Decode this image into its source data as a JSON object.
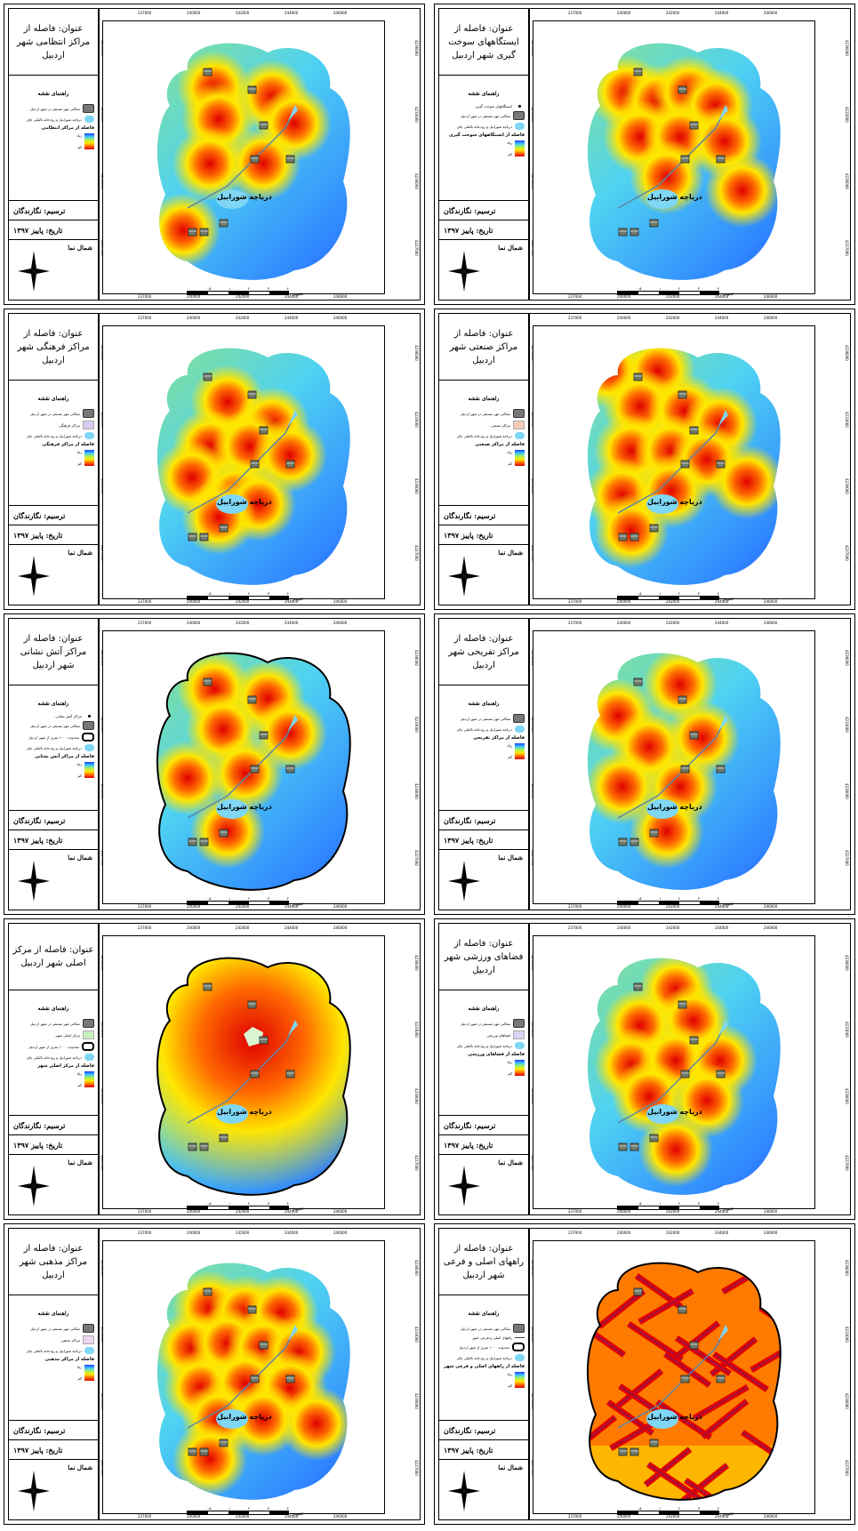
{
  "common": {
    "legend_heading": "راهنمای نقشه",
    "item_buildings": "سکانی مهر مستقر در شهر اردبیل",
    "item_lake": "دریاچه شورابیل و رودخانه بالقلی چای",
    "item_buffer": "محدوده ۱۰۰۰ متری از شهر اردبیل",
    "ramp_high": "زیاد",
    "ramp_low": "کم",
    "drawn_by": "ترسیم: نگارندگان",
    "date": "تاریخ: پاییز ۱۳۹۷",
    "north": "شمال نما",
    "lake_label": "دریاچه شورابیل",
    "scale_numbers": [
      "۰",
      "۰.۵",
      "۱",
      "۲",
      "۳",
      "۴"
    ],
    "scale_unit": "کیلومتر",
    "x_ticks": [
      "237000",
      "240000",
      "242000",
      "244000",
      "246000"
    ],
    "y_ticks": [
      "4236000",
      "4233000",
      "4230000",
      "4227000"
    ]
  },
  "panels": [
    {
      "title": "عنوان: فاصله از مراکز انتظامی شهر اردبیل",
      "extra_items": [],
      "ramp_title": "فاصله از مراکز انتظامی",
      "has_outline": false,
      "buffer_line": false
    },
    {
      "title": "عنوان: فاصله از ایستگاههای سوخت گیری شهر اردبیل",
      "extra_items": [
        {
          "kind": "dot",
          "label": "ایستگاههای سوخت گیری"
        }
      ],
      "ramp_title": "فاصله از ایستگاههای سوخت گیری",
      "has_outline": false,
      "buffer_line": false
    },
    {
      "title": "عنوان: فاصله از مراکز فرهنگی شهر اردبیل",
      "extra_items": [
        {
          "kind": "fill",
          "color": "#d9c8f0",
          "label": "مراکز فرهنگی"
        }
      ],
      "ramp_title": "فاصله از مراکز فرهنگی",
      "has_outline": false,
      "buffer_line": false
    },
    {
      "title": "عنوان: فاصله از مراکز صنعتی شهر اردبیل",
      "extra_items": [
        {
          "kind": "fill",
          "color": "#f5c9b8",
          "label": "مراکز صنعتی"
        }
      ],
      "ramp_title": "فاصله از مراکز صنعتی",
      "has_outline": false,
      "buffer_line": false
    },
    {
      "title": "عنوان: فاصله از مراکز آتش نشانی شهر اردبیل",
      "extra_items": [
        {
          "kind": "dot",
          "label": "مراکز آتش نشانی"
        }
      ],
      "ramp_title": "فاصله از مراکز آتش نشانی",
      "has_outline": true,
      "buffer_line": true
    },
    {
      "title": "عنوان: فاصله از مراکز تفریحی شهر اردبیل",
      "extra_items": [],
      "ramp_title": "فاصله از مراکز تفریحی",
      "has_outline": false,
      "buffer_line": false
    },
    {
      "title": "عنوان: فاصله از مرکز اصلی شهر اردبیل",
      "extra_items": [
        {
          "kind": "fill",
          "color": "#c8efc0",
          "label": "مرکز اصلی شهر"
        }
      ],
      "ramp_title": "فاصله از مرکز اصلی شهر",
      "has_outline": true,
      "buffer_line": true
    },
    {
      "title": "عنوان: فاصله از فضاهای ورزشی شهر اردبیل",
      "extra_items": [
        {
          "kind": "fill",
          "color": "#d6d3f3",
          "label": "فضاهای ورزشی"
        }
      ],
      "ramp_title": "فاصله از فضاهای ورزشی",
      "has_outline": false,
      "buffer_line": false
    },
    {
      "title": "عنوان: فاصله از مراکز مذهبی شهر اردبیل",
      "extra_items": [
        {
          "kind": "fill",
          "color": "#ecd6ef",
          "label": "مراکز مذهبی"
        }
      ],
      "ramp_title": "فاصله از مراکز مذهبی",
      "has_outline": false,
      "buffer_line": false
    },
    {
      "title": "عنوان: فاصله از راههای اصلی و فرعی شهر اردبیل",
      "extra_items": [
        {
          "kind": "line",
          "label": "راههای اصلی و فرعی شهر"
        }
      ],
      "ramp_title": "فاصله از راههای اصلی و فرعی شهر",
      "has_outline": true,
      "buffer_line": true
    }
  ]
}
